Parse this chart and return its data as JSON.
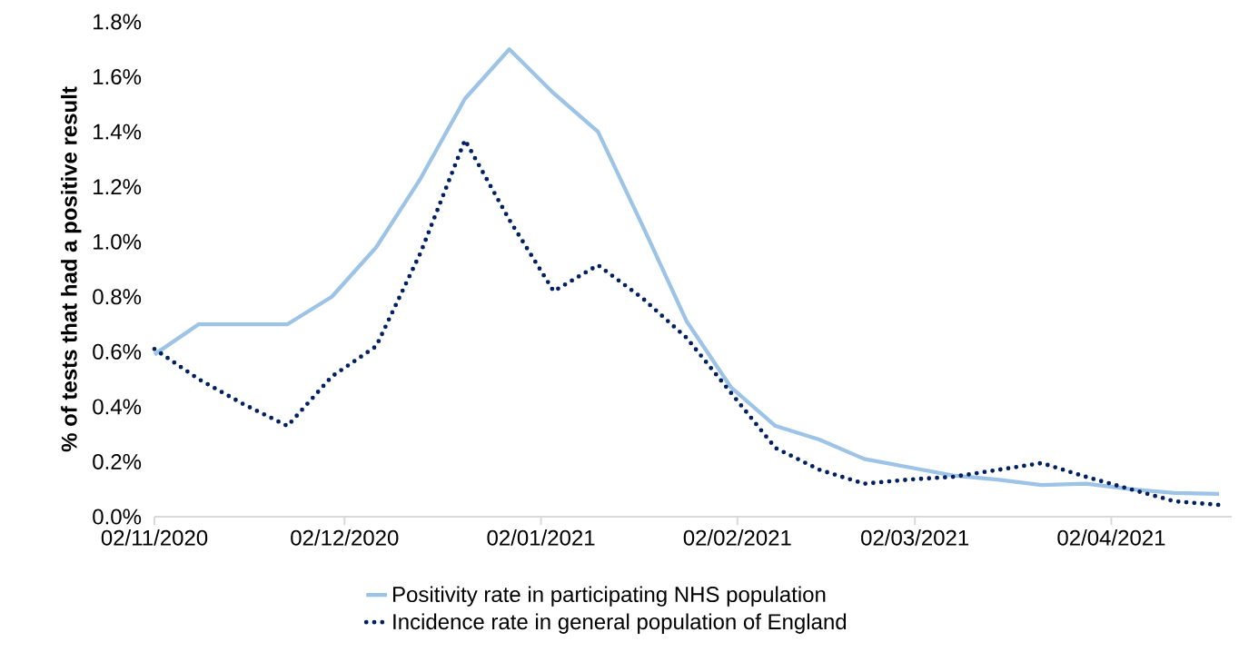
{
  "chart_data": {
    "type": "line",
    "ylabel": "% of tests that had a positive result",
    "x": [
      "2020-11-02",
      "2020-11-09",
      "2020-11-16",
      "2020-11-23",
      "2020-11-30",
      "2020-12-07",
      "2020-12-14",
      "2020-12-21",
      "2020-12-28",
      "2021-01-04",
      "2021-01-11",
      "2021-01-18",
      "2021-01-25",
      "2021-02-01",
      "2021-02-08",
      "2021-02-15",
      "2021-02-22",
      "2021-03-01",
      "2021-03-08",
      "2021-03-15",
      "2021-03-22",
      "2021-03-29",
      "2021-04-05",
      "2021-04-12",
      "2021-04-19"
    ],
    "series": [
      {
        "name": "Positivity rate in participating NHS population",
        "color": "#9dc3e6",
        "line_style": "solid",
        "values": [
          0.59,
          0.7,
          0.7,
          0.7,
          0.8,
          0.98,
          1.23,
          1.52,
          1.7,
          1.54,
          1.4,
          1.06,
          0.71,
          0.47,
          0.33,
          0.28,
          0.21,
          0.18,
          0.15,
          0.135,
          0.115,
          0.12,
          0.1,
          0.086,
          0.083
        ]
      },
      {
        "name": "Incidence rate in general population of England",
        "color": "#002060",
        "line_style": "dotted",
        "values": [
          0.61,
          0.5,
          0.41,
          0.33,
          0.51,
          0.62,
          0.96,
          1.37,
          1.08,
          0.82,
          0.915,
          0.795,
          0.65,
          0.45,
          0.25,
          0.17,
          0.12,
          0.135,
          0.145,
          0.17,
          0.195,
          0.145,
          0.1,
          0.056,
          0.043
        ]
      }
    ],
    "xlim": [
      "2020-11-02",
      "2021-04-21"
    ],
    "xticks": [
      {
        "value": "2020-11-02",
        "label": "02/11/2020"
      },
      {
        "value": "2020-12-02",
        "label": "02/12/2020"
      },
      {
        "value": "2021-01-02",
        "label": "02/01/2021"
      },
      {
        "value": "2021-02-02",
        "label": "02/02/2021"
      },
      {
        "value": "2021-03-02",
        "label": "02/03/2021"
      },
      {
        "value": "2021-04-02",
        "label": "02/04/2021"
      }
    ],
    "ylim": [
      0,
      1.8
    ],
    "yticks": [
      {
        "value": 0,
        "label": "0.0%"
      },
      {
        "value": 0.2,
        "label": "0.2%"
      },
      {
        "value": 0.4,
        "label": "0.4%"
      },
      {
        "value": 0.6,
        "label": "0.6%"
      },
      {
        "value": 0.8,
        "label": "0.8%"
      },
      {
        "value": 1.0,
        "label": "1.0%"
      },
      {
        "value": 1.2,
        "label": "1.2%"
      },
      {
        "value": 1.4,
        "label": "1.4%"
      },
      {
        "value": 1.6,
        "label": "1.6%"
      },
      {
        "value": 1.8,
        "label": "1.8%"
      }
    ],
    "grid": false,
    "legend": "bottom",
    "marker": "none"
  }
}
